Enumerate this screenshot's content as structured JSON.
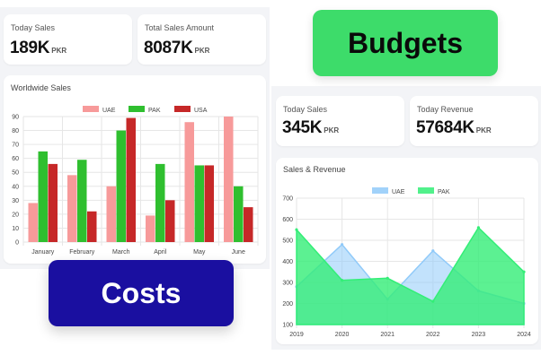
{
  "left": {
    "stat1": {
      "label": "Today Sales",
      "value": "189K",
      "unit": "PKR"
    },
    "stat2": {
      "label": "Total Sales Amount",
      "value": "8087K",
      "unit": "PKR"
    },
    "chart_title": "Worldwide Sales"
  },
  "right": {
    "stat1": {
      "label": "Today Sales",
      "value": "345K",
      "unit": "PKR"
    },
    "stat2": {
      "label": "Today Revenue",
      "value": "57684K",
      "unit": "PKR"
    },
    "chart_title": "Sales & Revenue"
  },
  "badges": {
    "budgets": "Budgets",
    "costs": "Costs",
    "budgets_color": "#3ddc6a",
    "costs_color": "#1a0fa0"
  },
  "chart_data": [
    {
      "type": "bar",
      "title": "Worldwide Sales",
      "categories": [
        "January",
        "February",
        "March",
        "April",
        "May",
        "June"
      ],
      "series": [
        {
          "name": "UAE",
          "color": "#f79a9a",
          "values": [
            28,
            48,
            40,
            19,
            86,
            90
          ]
        },
        {
          "name": "PAK",
          "color": "#2fbf2f",
          "values": [
            65,
            59,
            80,
            56,
            55,
            40
          ]
        },
        {
          "name": "USA",
          "color": "#c62828",
          "values": [
            56,
            22,
            89,
            30,
            55,
            25
          ]
        }
      ],
      "ylim": [
        0,
        90
      ],
      "yticks": [
        0,
        10,
        20,
        30,
        40,
        50,
        60,
        70,
        80,
        90
      ],
      "legend": "top",
      "grid": true
    },
    {
      "type": "area",
      "title": "Sales & Revenue",
      "categories": [
        "2019",
        "2020",
        "2021",
        "2022",
        "2023",
        "2024"
      ],
      "series": [
        {
          "name": "UAE",
          "color": "#90caf9",
          "values": [
            280,
            480,
            220,
            450,
            260,
            200
          ]
        },
        {
          "name": "PAK",
          "color": "#33ee77",
          "values": [
            550,
            310,
            320,
            210,
            560,
            350
          ]
        }
      ],
      "ylim": [
        100,
        700
      ],
      "yticks": [
        100,
        200,
        300,
        400,
        500,
        600,
        700
      ],
      "legend": "top",
      "grid": true
    }
  ]
}
